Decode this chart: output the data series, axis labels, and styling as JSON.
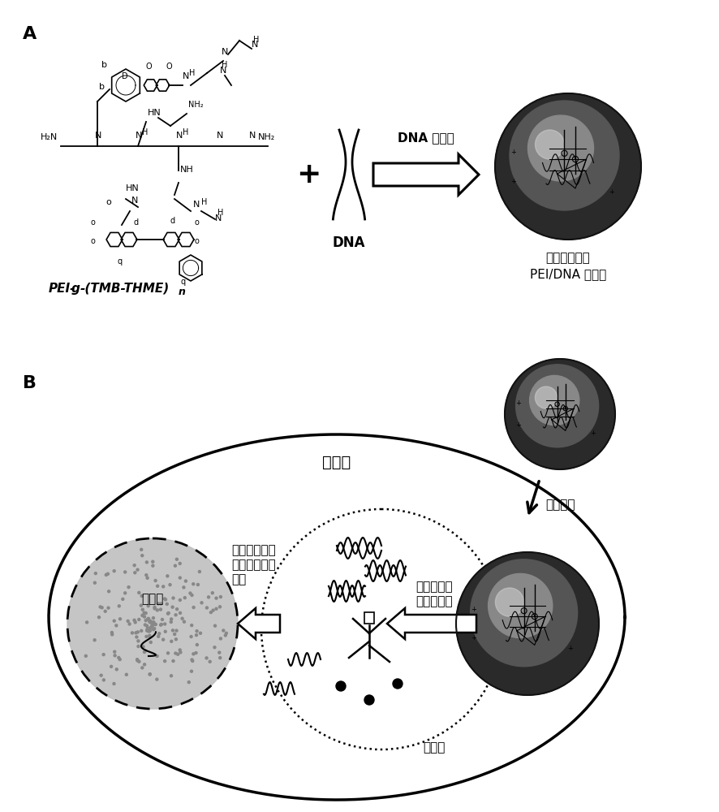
{
  "panel_A_label": "A",
  "panel_B_label": "B",
  "pei_label": "PEI-g-(TMB-THME)n",
  "dna_label": "DNA",
  "arrow_label": "DNA 复合物",
  "complex_label_line1": "可逆疏水修饰",
  "complex_label_line2": "PEI/DNA 复合物",
  "cytoplasm_label": "细胞质",
  "endocytosis_label": "细胞内吞",
  "endosome_label": "内剥体",
  "nucleus_label": "细胞核",
  "escape_label_line1": "质子海绵作用",
  "escape_label_line2": "导致的内剥体",
  "escape_label_line3": "逃离",
  "hydrolysis_label_line1": "缩醇水解和",
  "hydrolysis_label_line2": "复合物解离",
  "bg_color": "#ffffff",
  "text_color": "#000000",
  "figure_width": 8.86,
  "figure_height": 10.0
}
